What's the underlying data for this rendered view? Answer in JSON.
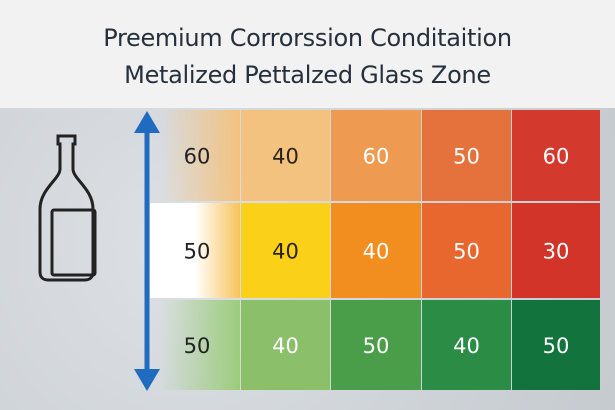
{
  "header": {
    "title_line1": "Preemium Corrorssion Conditaition",
    "title_line2": "Metalized Pettalzed Glass Zone"
  },
  "chart_data": {
    "type": "heatmap",
    "title": "Preemium Corrorssion Conditaition Metalized Pettalzed Glass Zone",
    "rows": 3,
    "columns": 6,
    "values": [
      [
        60,
        40,
        60,
        50,
        60
      ],
      [
        50,
        40,
        40,
        50,
        30
      ],
      [
        50,
        40,
        50,
        40,
        50
      ]
    ],
    "leading_values": [
      60,
      50,
      50
    ],
    "cell_values": [
      [
        40,
        60,
        50,
        60
      ],
      [
        40,
        40,
        50,
        30
      ],
      [
        40,
        50,
        40,
        50
      ]
    ],
    "row_colors": [
      [
        "#f3c27e",
        "#ee9a50",
        "#e5713c",
        "#d3392c"
      ],
      [
        "#fbd018",
        "#f28e1f",
        "#e8672f",
        "#d2342a"
      ],
      [
        "#8cbf6a",
        "#4a9e4a",
        "#2a8c45",
        "#12733d"
      ]
    ],
    "icons": [
      "bottle-icon",
      "double-arrow-vertical-icon"
    ],
    "arrow_color": "#1f6bbf",
    "grid": true
  }
}
